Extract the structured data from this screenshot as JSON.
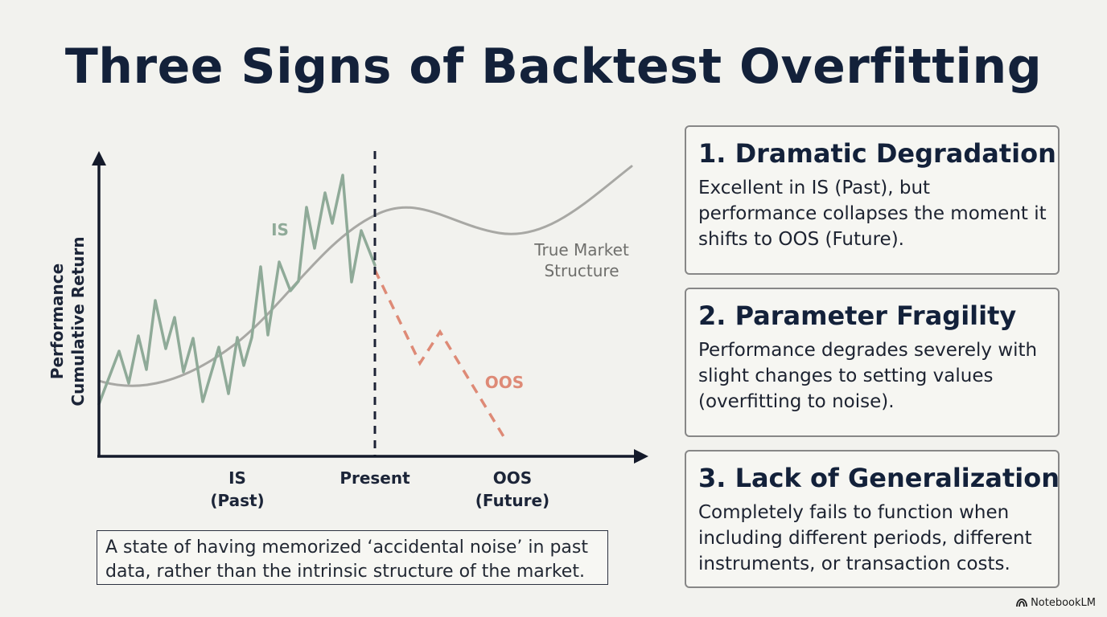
{
  "title": "Three Signs of Backtest Overfitting",
  "diagram": {
    "y_axis_label_line1": "Performance",
    "y_axis_label_line2": "Cumulative Return",
    "x_labels": [
      {
        "line1": "IS",
        "line2": "(Past)"
      },
      {
        "line1": "Present",
        "line2": ""
      },
      {
        "line1": "OOS",
        "line2": "(Future)"
      }
    ],
    "is_label": "IS",
    "oos_label": "OOS",
    "true_market_label_line1": "True Market",
    "true_market_label_line2": "Structure",
    "colors": {
      "is_series": "#8faa98",
      "oos_series": "#de8a76",
      "true_market": "#a8a8a4",
      "axis": "#141a2a"
    }
  },
  "caption": "A state of having memorized ‘accidental noise’ in past data, rather than the intrinsic structure of the market.",
  "cards": [
    {
      "title": "1. Dramatic Degradation",
      "body": "Excellent in IS (Past), but performance collapses the moment it shifts to OOS (Future)."
    },
    {
      "title": "2. Parameter Fragility",
      "body": "Performance degrades severely with slight changes to setting values (overfitting to noise)."
    },
    {
      "title": "3. Lack of Generalization",
      "body": "Completely fails to function when including different periods, different instruments, or transaction costs."
    }
  ],
  "brand": "NotebookLM"
}
